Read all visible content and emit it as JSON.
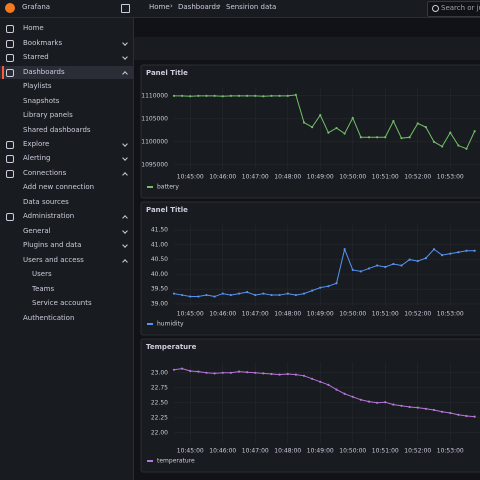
{
  "topbar": {
    "brand": "Grafana",
    "breadcrumbs": [
      "Home",
      "Dashboards",
      "Sensirion data"
    ],
    "search": "Search or jump to..."
  },
  "nav": [
    "Home",
    "Bookmarks",
    "Starred",
    "Dashboards",
    "Playlists",
    "Snapshots",
    "Library panels",
    "Shared dashboards",
    "Explore",
    "Alerting",
    "Connections",
    "Add new connection",
    "Data sources",
    "Administration",
    "General",
    "Plugins and data",
    "Users and access",
    "Users",
    "Teams",
    "Service accounts",
    "Authentication"
  ],
  "panels": [
    {
      "type": "line",
      "title": "Panel Title",
      "x": [
        "10:44:30",
        "10:44:45",
        "10:45:00",
        "10:45:15",
        "10:45:30",
        "10:45:45",
        "10:46:00",
        "10:46:15",
        "10:46:30",
        "10:46:45",
        "10:47:00",
        "10:47:15",
        "10:47:30",
        "10:47:45",
        "10:48:00",
        "10:48:15",
        "10:48:30",
        "10:48:45",
        "10:49:00",
        "10:49:15",
        "10:49:30",
        "10:49:45",
        "10:50:00",
        "10:50:15",
        "10:50:30",
        "10:50:45",
        "10:51:00",
        "10:51:15",
        "10:51:30",
        "10:51:45",
        "10:52:00",
        "10:52:15",
        "10:52:30",
        "10:52:45",
        "10:53:00",
        "10:53:15",
        "10:53:30",
        "10:53:45"
      ],
      "xlim": [
        "10:44:30",
        "10:54:30"
      ],
      "xticks": [
        "10:45:00",
        "10:46:00",
        "10:47:00",
        "10:48:00",
        "10:49:00",
        "10:50:00",
        "10:51:00",
        "10:52:00",
        "10:53:00"
      ],
      "ylim": [
        1094100,
        1111700
      ],
      "yticks": [
        1095000,
        1100000,
        1105000,
        1110000
      ],
      "series": [
        {
          "name": "battery",
          "color": "#73bf69",
          "values": [
            1110000,
            1110000,
            1109900,
            1110000,
            1110000,
            1110000,
            1109900,
            1110000,
            1110000,
            1110000,
            1110000,
            1109900,
            1110000,
            1110000,
            1110000,
            1110200,
            1104200,
            1103200,
            1105800,
            1102000,
            1103000,
            1101800,
            1105200,
            1101000,
            1101000,
            1101000,
            1101000,
            1104500,
            1100800,
            1101000,
            1104000,
            1103200,
            1100000,
            1099000,
            1102000,
            1099200,
            1098500,
            1102300
          ]
        }
      ]
    },
    {
      "type": "line",
      "title": "Panel Title",
      "x": [
        "10:44:30",
        "10:44:45",
        "10:45:00",
        "10:45:15",
        "10:45:30",
        "10:45:45",
        "10:46:00",
        "10:46:15",
        "10:46:30",
        "10:46:45",
        "10:47:00",
        "10:47:15",
        "10:47:30",
        "10:47:45",
        "10:48:00",
        "10:48:15",
        "10:48:30",
        "10:48:45",
        "10:49:00",
        "10:49:15",
        "10:49:30",
        "10:49:45",
        "10:50:00",
        "10:50:15",
        "10:50:30",
        "10:50:45",
        "10:51:00",
        "10:51:15",
        "10:51:30",
        "10:51:45",
        "10:52:00",
        "10:52:15",
        "10:52:30",
        "10:52:45",
        "10:53:00",
        "10:53:15",
        "10:53:30",
        "10:53:45"
      ],
      "xlim": [
        "10:44:30",
        "10:54:30"
      ],
      "xticks": [
        "10:45:00",
        "10:46:00",
        "10:47:00",
        "10:48:00",
        "10:49:00",
        "10:50:00",
        "10:51:00",
        "10:52:00",
        "10:53:00"
      ],
      "ylim": [
        38.93,
        41.67
      ],
      "yticks": [
        {
          "value": 39,
          "label": "39.00"
        },
        {
          "value": 39.5,
          "label": "39.50"
        },
        {
          "value": 40,
          "label": "40.00"
        },
        {
          "value": 40.5,
          "label": "40.50"
        },
        {
          "value": 41,
          "label": "41.00"
        },
        {
          "value": 41.5,
          "label": "41.50"
        }
      ],
      "series": [
        {
          "name": "humidity",
          "color": "#5794f2",
          "values": [
            39.35,
            39.3,
            39.25,
            39.25,
            39.3,
            39.25,
            39.35,
            39.3,
            39.35,
            39.4,
            39.3,
            39.35,
            39.3,
            39.3,
            39.35,
            39.3,
            39.35,
            39.45,
            39.55,
            39.6,
            39.7,
            40.85,
            40.15,
            40.1,
            40.2,
            40.3,
            40.25,
            40.35,
            40.3,
            40.5,
            40.45,
            40.55,
            40.85,
            40.65,
            40.7,
            40.75,
            40.8,
            40.8
          ]
        }
      ]
    },
    {
      "type": "line",
      "title": "Temperature",
      "x": [
        "10:44:30",
        "10:44:45",
        "10:45:00",
        "10:45:15",
        "10:45:30",
        "10:45:45",
        "10:46:00",
        "10:46:15",
        "10:46:30",
        "10:46:45",
        "10:47:00",
        "10:47:15",
        "10:47:30",
        "10:47:45",
        "10:48:00",
        "10:48:15",
        "10:48:30",
        "10:48:45",
        "10:49:00",
        "10:49:15",
        "10:49:30",
        "10:49:45",
        "10:50:00",
        "10:50:15",
        "10:50:30",
        "10:50:45",
        "10:51:00",
        "10:51:15",
        "10:51:30",
        "10:51:45",
        "10:52:00",
        "10:52:15",
        "10:52:30",
        "10:52:45",
        "10:53:00",
        "10:53:15",
        "10:53:30",
        "10:53:45"
      ],
      "xlim": [
        "10:44:30",
        "10:54:30"
      ],
      "xticks": [
        "10:45:00",
        "10:46:00",
        "10:47:00",
        "10:48:00",
        "10:49:00",
        "10:50:00",
        "10:51:00",
        "10:52:00",
        "10:53:00"
      ],
      "ylim": [
        21.83,
        23.18
      ],
      "yticks": [
        {
          "value": 22,
          "label": "22.00"
        },
        {
          "value": 22.25,
          "label": "22.25"
        },
        {
          "value": 22.5,
          "label": "22.50"
        },
        {
          "value": 22.75,
          "label": "22.75"
        },
        {
          "value": 23,
          "label": "23.00"
        }
      ],
      "series": [
        {
          "name": "temperature",
          "color": "#b877d9",
          "values": [
            23.05,
            23.07,
            23.03,
            23.02,
            23.0,
            22.99,
            23.0,
            23.0,
            23.02,
            23.01,
            23.0,
            22.99,
            22.98,
            22.97,
            22.98,
            22.97,
            22.95,
            22.9,
            22.85,
            22.8,
            22.72,
            22.65,
            22.6,
            22.55,
            22.52,
            22.5,
            22.51,
            22.47,
            22.45,
            22.43,
            22.42,
            22.4,
            22.38,
            22.35,
            22.33,
            22.3,
            22.28,
            22.27
          ]
        }
      ]
    }
  ]
}
